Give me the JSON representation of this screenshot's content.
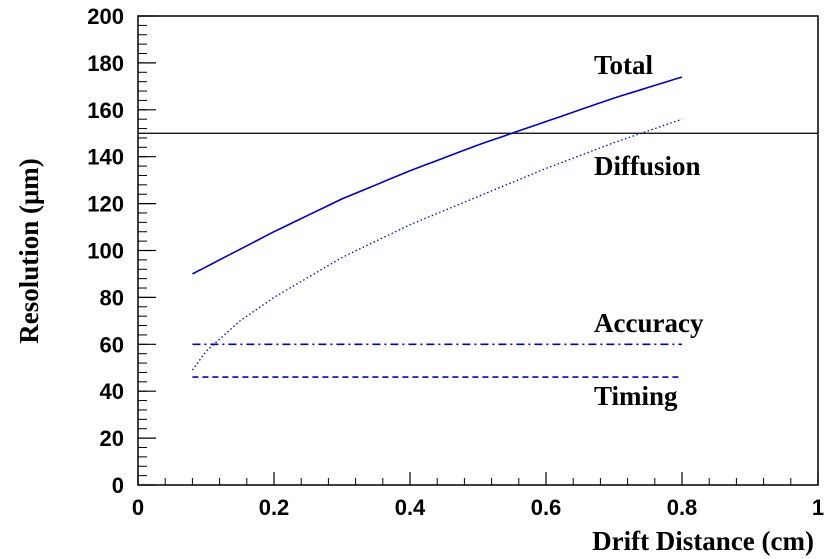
{
  "chart_data": {
    "type": "line",
    "title": "",
    "xlabel": "Drift Distance (cm)",
    "ylabel": "Resolution (μm)",
    "xlim": [
      0,
      1
    ],
    "ylim": [
      0,
      200
    ],
    "xticks": [
      "0",
      "0.2",
      "0.4",
      "0.6",
      "0.8",
      "1"
    ],
    "yticks": [
      "0",
      "20",
      "40",
      "60",
      "80",
      "100",
      "120",
      "140",
      "160",
      "180",
      "200"
    ],
    "grid": false,
    "series": [
      {
        "name": "Total",
        "style": "solid",
        "color": "#0000cc",
        "x": [
          0.08,
          0.1,
          0.2,
          0.3,
          0.4,
          0.5,
          0.6,
          0.7,
          0.8
        ],
        "y": [
          90,
          93,
          108,
          122,
          134,
          145,
          155,
          165,
          174
        ]
      },
      {
        "name": "Diffusion",
        "style": "dotted",
        "color": "#0000cc",
        "x": [
          0.08,
          0.1,
          0.15,
          0.2,
          0.3,
          0.4,
          0.5,
          0.6,
          0.7,
          0.8
        ],
        "y": [
          49,
          57,
          70,
          80,
          97,
          111,
          123,
          135,
          146,
          156
        ]
      },
      {
        "name": "Accuracy",
        "style": "dashdot",
        "color": "#0000cc",
        "x": [
          0.08,
          0.8
        ],
        "y": [
          60,
          60
        ]
      },
      {
        "name": "Timing",
        "style": "dashed",
        "color": "#0000cc",
        "x": [
          0.08,
          0.8
        ],
        "y": [
          46,
          46
        ]
      }
    ],
    "reference_lines": [
      {
        "y": 150,
        "color": "#000000",
        "style": "solid"
      }
    ],
    "annotations": [
      {
        "text": "Total",
        "x": 0.7,
        "y": 179
      },
      {
        "text": "Diffusion",
        "x": 0.7,
        "y": 136
      },
      {
        "text": "Accuracy",
        "x": 0.7,
        "y": 69
      },
      {
        "text": "Timing",
        "x": 0.7,
        "y": 38
      }
    ]
  }
}
